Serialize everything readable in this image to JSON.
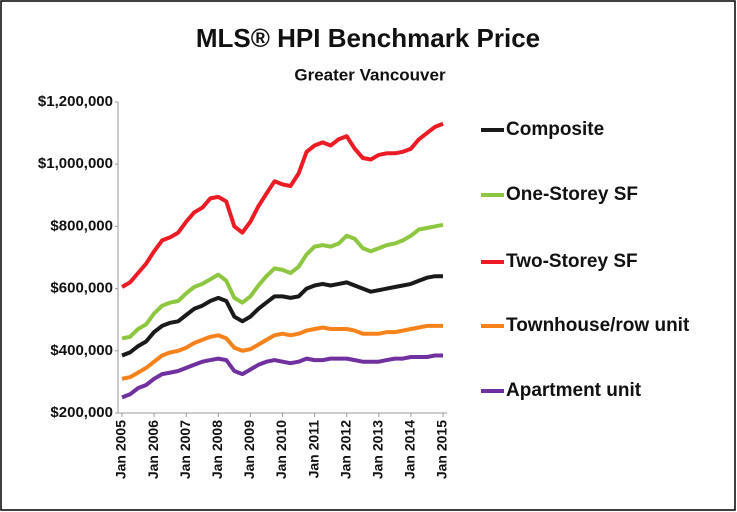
{
  "chart_data": {
    "type": "line",
    "title": "MLS® HPI Benchmark Price",
    "subtitle": "Greater Vancouver",
    "categories": [
      "Jan 2005",
      null,
      null,
      null,
      "Jan 2006",
      null,
      null,
      null,
      "Jan 2007",
      null,
      null,
      null,
      "Jan 2008",
      null,
      null,
      null,
      "Jan 2009",
      null,
      null,
      null,
      "Jan 2010",
      null,
      null,
      null,
      "Jan 2011",
      null,
      null,
      null,
      "Jan 2012",
      null,
      null,
      null,
      "Jan 2013",
      null,
      null,
      null,
      "Jan 2014",
      null,
      null,
      null,
      "Jan 2015"
    ],
    "series": [
      {
        "name": "Composite",
        "color": "#1a1a1a",
        "values": [
          385000,
          395000,
          415000,
          430000,
          460000,
          480000,
          490000,
          495000,
          515000,
          535000,
          545000,
          560000,
          570000,
          560000,
          510000,
          495000,
          510000,
          535000,
          555000,
          575000,
          575000,
          570000,
          575000,
          600000,
          610000,
          615000,
          610000,
          615000,
          620000,
          610000,
          600000,
          590000,
          595000,
          600000,
          605000,
          610000,
          615000,
          625000,
          635000,
          640000,
          640000
        ]
      },
      {
        "name": "One-Storey SF",
        "color": "#8dc63f",
        "values": [
          440000,
          445000,
          470000,
          485000,
          520000,
          545000,
          555000,
          560000,
          585000,
          605000,
          615000,
          630000,
          645000,
          625000,
          570000,
          555000,
          575000,
          610000,
          640000,
          665000,
          660000,
          650000,
          670000,
          710000,
          735000,
          740000,
          735000,
          745000,
          770000,
          760000,
          730000,
          720000,
          730000,
          740000,
          745000,
          755000,
          770000,
          790000,
          795000,
          800000,
          805000
        ]
      },
      {
        "name": "Two-Storey SF",
        "color": "#ed1c24",
        "values": [
          605000,
          620000,
          650000,
          680000,
          720000,
          755000,
          765000,
          780000,
          815000,
          845000,
          860000,
          890000,
          895000,
          880000,
          800000,
          780000,
          815000,
          865000,
          905000,
          945000,
          935000,
          930000,
          970000,
          1040000,
          1060000,
          1070000,
          1060000,
          1080000,
          1090000,
          1050000,
          1020000,
          1015000,
          1030000,
          1035000,
          1035000,
          1040000,
          1050000,
          1080000,
          1100000,
          1120000,
          1130000
        ]
      },
      {
        "name": "Townhouse/row unit",
        "color": "#f7821b",
        "values": [
          310000,
          315000,
          330000,
          345000,
          365000,
          385000,
          395000,
          400000,
          410000,
          425000,
          435000,
          445000,
          450000,
          440000,
          410000,
          400000,
          405000,
          420000,
          435000,
          450000,
          455000,
          450000,
          455000,
          465000,
          470000,
          475000,
          470000,
          470000,
          470000,
          465000,
          455000,
          455000,
          455000,
          460000,
          460000,
          465000,
          470000,
          475000,
          480000,
          480000,
          480000
        ]
      },
      {
        "name": "Apartment unit",
        "color": "#7030a0",
        "values": [
          250000,
          260000,
          280000,
          290000,
          310000,
          325000,
          330000,
          335000,
          345000,
          355000,
          365000,
          370000,
          375000,
          370000,
          335000,
          325000,
          340000,
          355000,
          365000,
          370000,
          365000,
          360000,
          365000,
          375000,
          370000,
          370000,
          375000,
          375000,
          375000,
          370000,
          365000,
          365000,
          365000,
          370000,
          375000,
          375000,
          380000,
          380000,
          380000,
          385000,
          385000
        ]
      }
    ],
    "ylim": [
      200000,
      1200000
    ],
    "yticks": [
      {
        "value": 200000,
        "label": "$200,000"
      },
      {
        "value": 400000,
        "label": "$400,000"
      },
      {
        "value": 600000,
        "label": "$600,000"
      },
      {
        "value": 800000,
        "label": "$800,000"
      },
      {
        "value": 1000000,
        "label": "$1,000,000"
      },
      {
        "value": 1200000,
        "label": "$1,200,000"
      }
    ],
    "legend": "right",
    "grid": false
  }
}
